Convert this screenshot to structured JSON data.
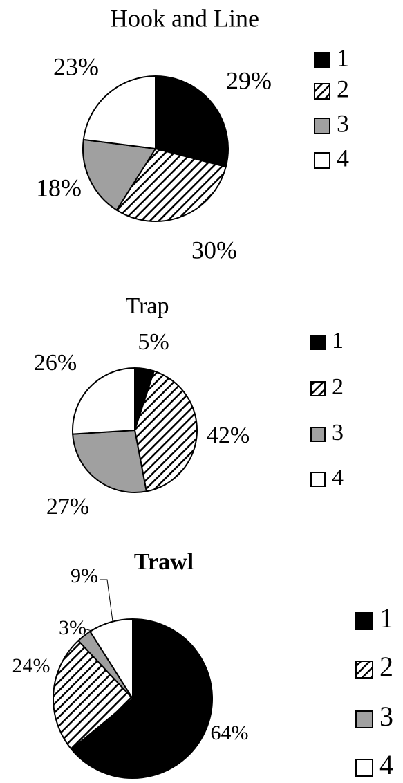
{
  "chart_data": [
    {
      "type": "pie",
      "title": "Hook and Line",
      "title_bold": false,
      "categories": [
        "1",
        "2",
        "3",
        "4"
      ],
      "values": [
        29,
        30,
        18,
        23
      ],
      "value_labels": [
        "29%",
        "30%",
        "18%",
        "23%"
      ],
      "colors": [
        "#000000",
        "hatch",
        "#a0a0a0",
        "#ffffff"
      ]
    },
    {
      "type": "pie",
      "title": "Trap",
      "title_bold": false,
      "categories": [
        "1",
        "2",
        "3",
        "4"
      ],
      "values": [
        5,
        42,
        27,
        26
      ],
      "value_labels": [
        "5%",
        "42%",
        "27%",
        "26%"
      ],
      "colors": [
        "#000000",
        "hatch",
        "#a0a0a0",
        "#ffffff"
      ]
    },
    {
      "type": "pie",
      "title": "Trawl",
      "title_bold": true,
      "categories": [
        "1",
        "2",
        "3",
        "4"
      ],
      "values": [
        64,
        24,
        3,
        9
      ],
      "value_labels": [
        "64%",
        "24%",
        "3%",
        "9%"
      ],
      "colors": [
        "#000000",
        "hatch",
        "#a0a0a0",
        "#ffffff"
      ]
    }
  ]
}
